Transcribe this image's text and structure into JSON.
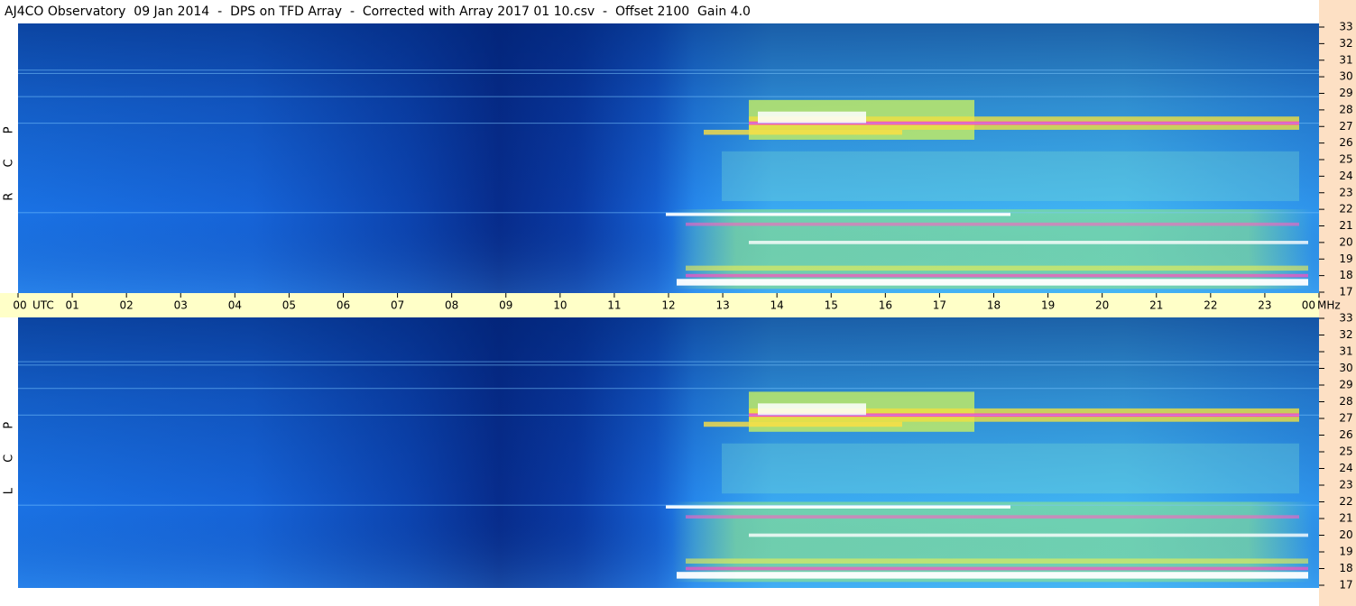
{
  "chart_data": {
    "type": "spectrogram",
    "title": "AJ4CO Observatory  09 Jan 2014  -  DPS on TFD Array  -  Corrected with Array 2017 01 10.csv  -  Offset 2100  Gain 4.0",
    "xlabel": "UTC",
    "ylabel": "MHz",
    "panels": [
      {
        "label": "R C P"
      },
      {
        "label": "L C P"
      }
    ],
    "xlim": [
      0,
      24
    ],
    "xticks": [
      {
        "value": 0,
        "label": "00"
      },
      {
        "value": 1,
        "label": "01"
      },
      {
        "value": 2,
        "label": "02"
      },
      {
        "value": 3,
        "label": "03"
      },
      {
        "value": 4,
        "label": "04"
      },
      {
        "value": 5,
        "label": "05"
      },
      {
        "value": 6,
        "label": "06"
      },
      {
        "value": 7,
        "label": "07"
      },
      {
        "value": 8,
        "label": "08"
      },
      {
        "value": 9,
        "label": "09"
      },
      {
        "value": 10,
        "label": "10"
      },
      {
        "value": 11,
        "label": "11"
      },
      {
        "value": 12,
        "label": "12"
      },
      {
        "value": 13,
        "label": "13"
      },
      {
        "value": 14,
        "label": "14"
      },
      {
        "value": 15,
        "label": "15"
      },
      {
        "value": 16,
        "label": "16"
      },
      {
        "value": 17,
        "label": "17"
      },
      {
        "value": 18,
        "label": "18"
      },
      {
        "value": 19,
        "label": "19"
      },
      {
        "value": 20,
        "label": "20"
      },
      {
        "value": 21,
        "label": "21"
      },
      {
        "value": 22,
        "label": "22"
      },
      {
        "value": 23,
        "label": "23"
      },
      {
        "value": 24,
        "label": "00"
      }
    ],
    "ylim": [
      17,
      33
    ],
    "yticks": [
      17,
      18,
      19,
      20,
      21,
      22,
      23,
      24,
      25,
      26,
      27,
      28,
      29,
      30,
      31,
      32,
      33
    ]
  }
}
